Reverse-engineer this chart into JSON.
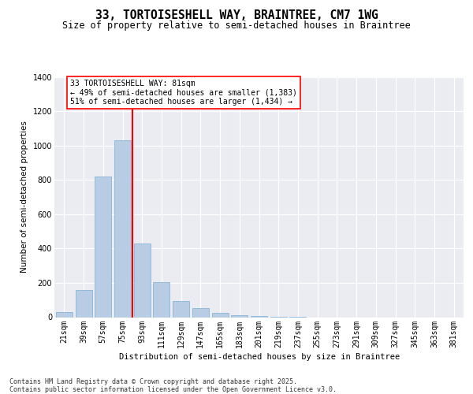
{
  "title_line1": "33, TORTOISESHELL WAY, BRAINTREE, CM7 1WG",
  "title_line2": "Size of property relative to semi-detached houses in Braintree",
  "xlabel": "Distribution of semi-detached houses by size in Braintree",
  "ylabel": "Number of semi-detached properties",
  "categories": [
    "21sqm",
    "39sqm",
    "57sqm",
    "75sqm",
    "93sqm",
    "111sqm",
    "129sqm",
    "147sqm",
    "165sqm",
    "183sqm",
    "201sqm",
    "219sqm",
    "237sqm",
    "255sqm",
    "273sqm",
    "291sqm",
    "309sqm",
    "327sqm",
    "345sqm",
    "363sqm",
    "381sqm"
  ],
  "values": [
    30,
    160,
    820,
    1030,
    430,
    205,
    95,
    55,
    25,
    10,
    5,
    3,
    2,
    0,
    0,
    0,
    0,
    0,
    0,
    0,
    0
  ],
  "bar_color": "#b8cce4",
  "bar_edge_color": "#7bafd4",
  "property_line_color": "red",
  "annotation_line1": "33 TORTOISESHELL WAY: 81sqm",
  "annotation_line2": "← 49% of semi-detached houses are smaller (1,383)",
  "annotation_line3": "51% of semi-detached houses are larger (1,434) →",
  "ylim": [
    0,
    1400
  ],
  "yticks": [
    0,
    200,
    400,
    600,
    800,
    1000,
    1200,
    1400
  ],
  "footnote": "Contains HM Land Registry data © Crown copyright and database right 2025.\nContains public sector information licensed under the Open Government Licence v3.0.",
  "bg_color": "#eaecf2",
  "grid_color": "#ffffff",
  "title_fontsize": 10.5,
  "subtitle_fontsize": 8.5,
  "axis_label_fontsize": 7.5,
  "tick_fontsize": 7,
  "annot_fontsize": 7,
  "footnote_fontsize": 6,
  "property_bin_index": 3.5
}
